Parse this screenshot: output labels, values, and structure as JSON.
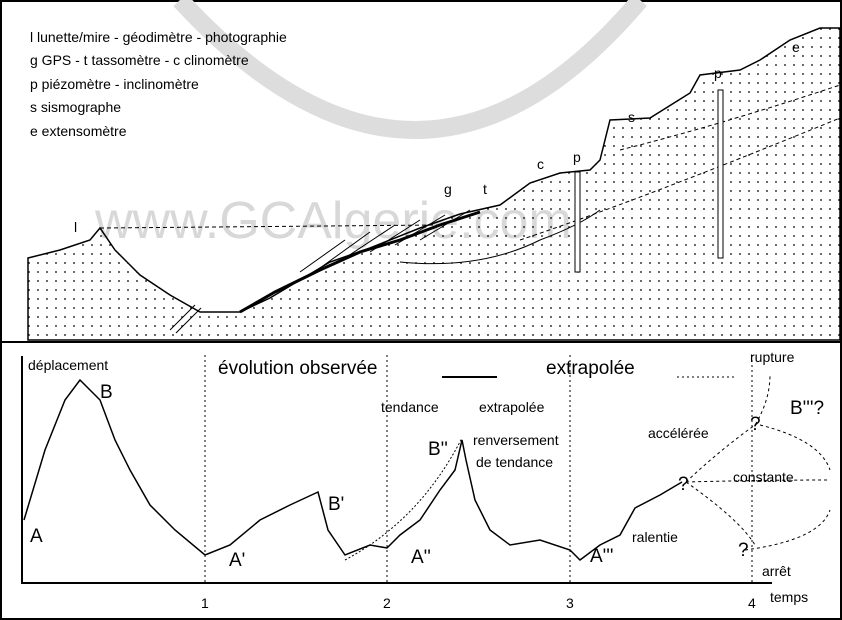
{
  "legend": [
    "l lunette/mire - géodimètre - photographie",
    "g GPS - t tassomètre - c clinomètre",
    "p piézomètre - inclinomètre",
    "s sismographe",
    "e extensomètre"
  ],
  "site_labels": [
    "l",
    "g",
    "t",
    "c",
    "p",
    "p",
    "s",
    "e"
  ],
  "watermark": "www.GCAlgerie.com",
  "graph": {
    "y_axis_label": "déplacement",
    "x_axis_label": "temps",
    "x_ticks": [
      1,
      2,
      3,
      4
    ],
    "title_observed": "évolution  observée",
    "title_extrapolated": "extrapolée",
    "points": [
      "A",
      "B",
      "A'",
      "B'",
      "A''",
      "B''",
      "A'''",
      "B'''?"
    ],
    "annotations": [
      "tendance",
      "extrapolée",
      "renversement",
      "de tendance",
      "accélérée",
      "constante",
      "ralentie",
      "rupture",
      "arrêt"
    ],
    "question_marks": [
      "?",
      "?",
      "?"
    ]
  }
}
